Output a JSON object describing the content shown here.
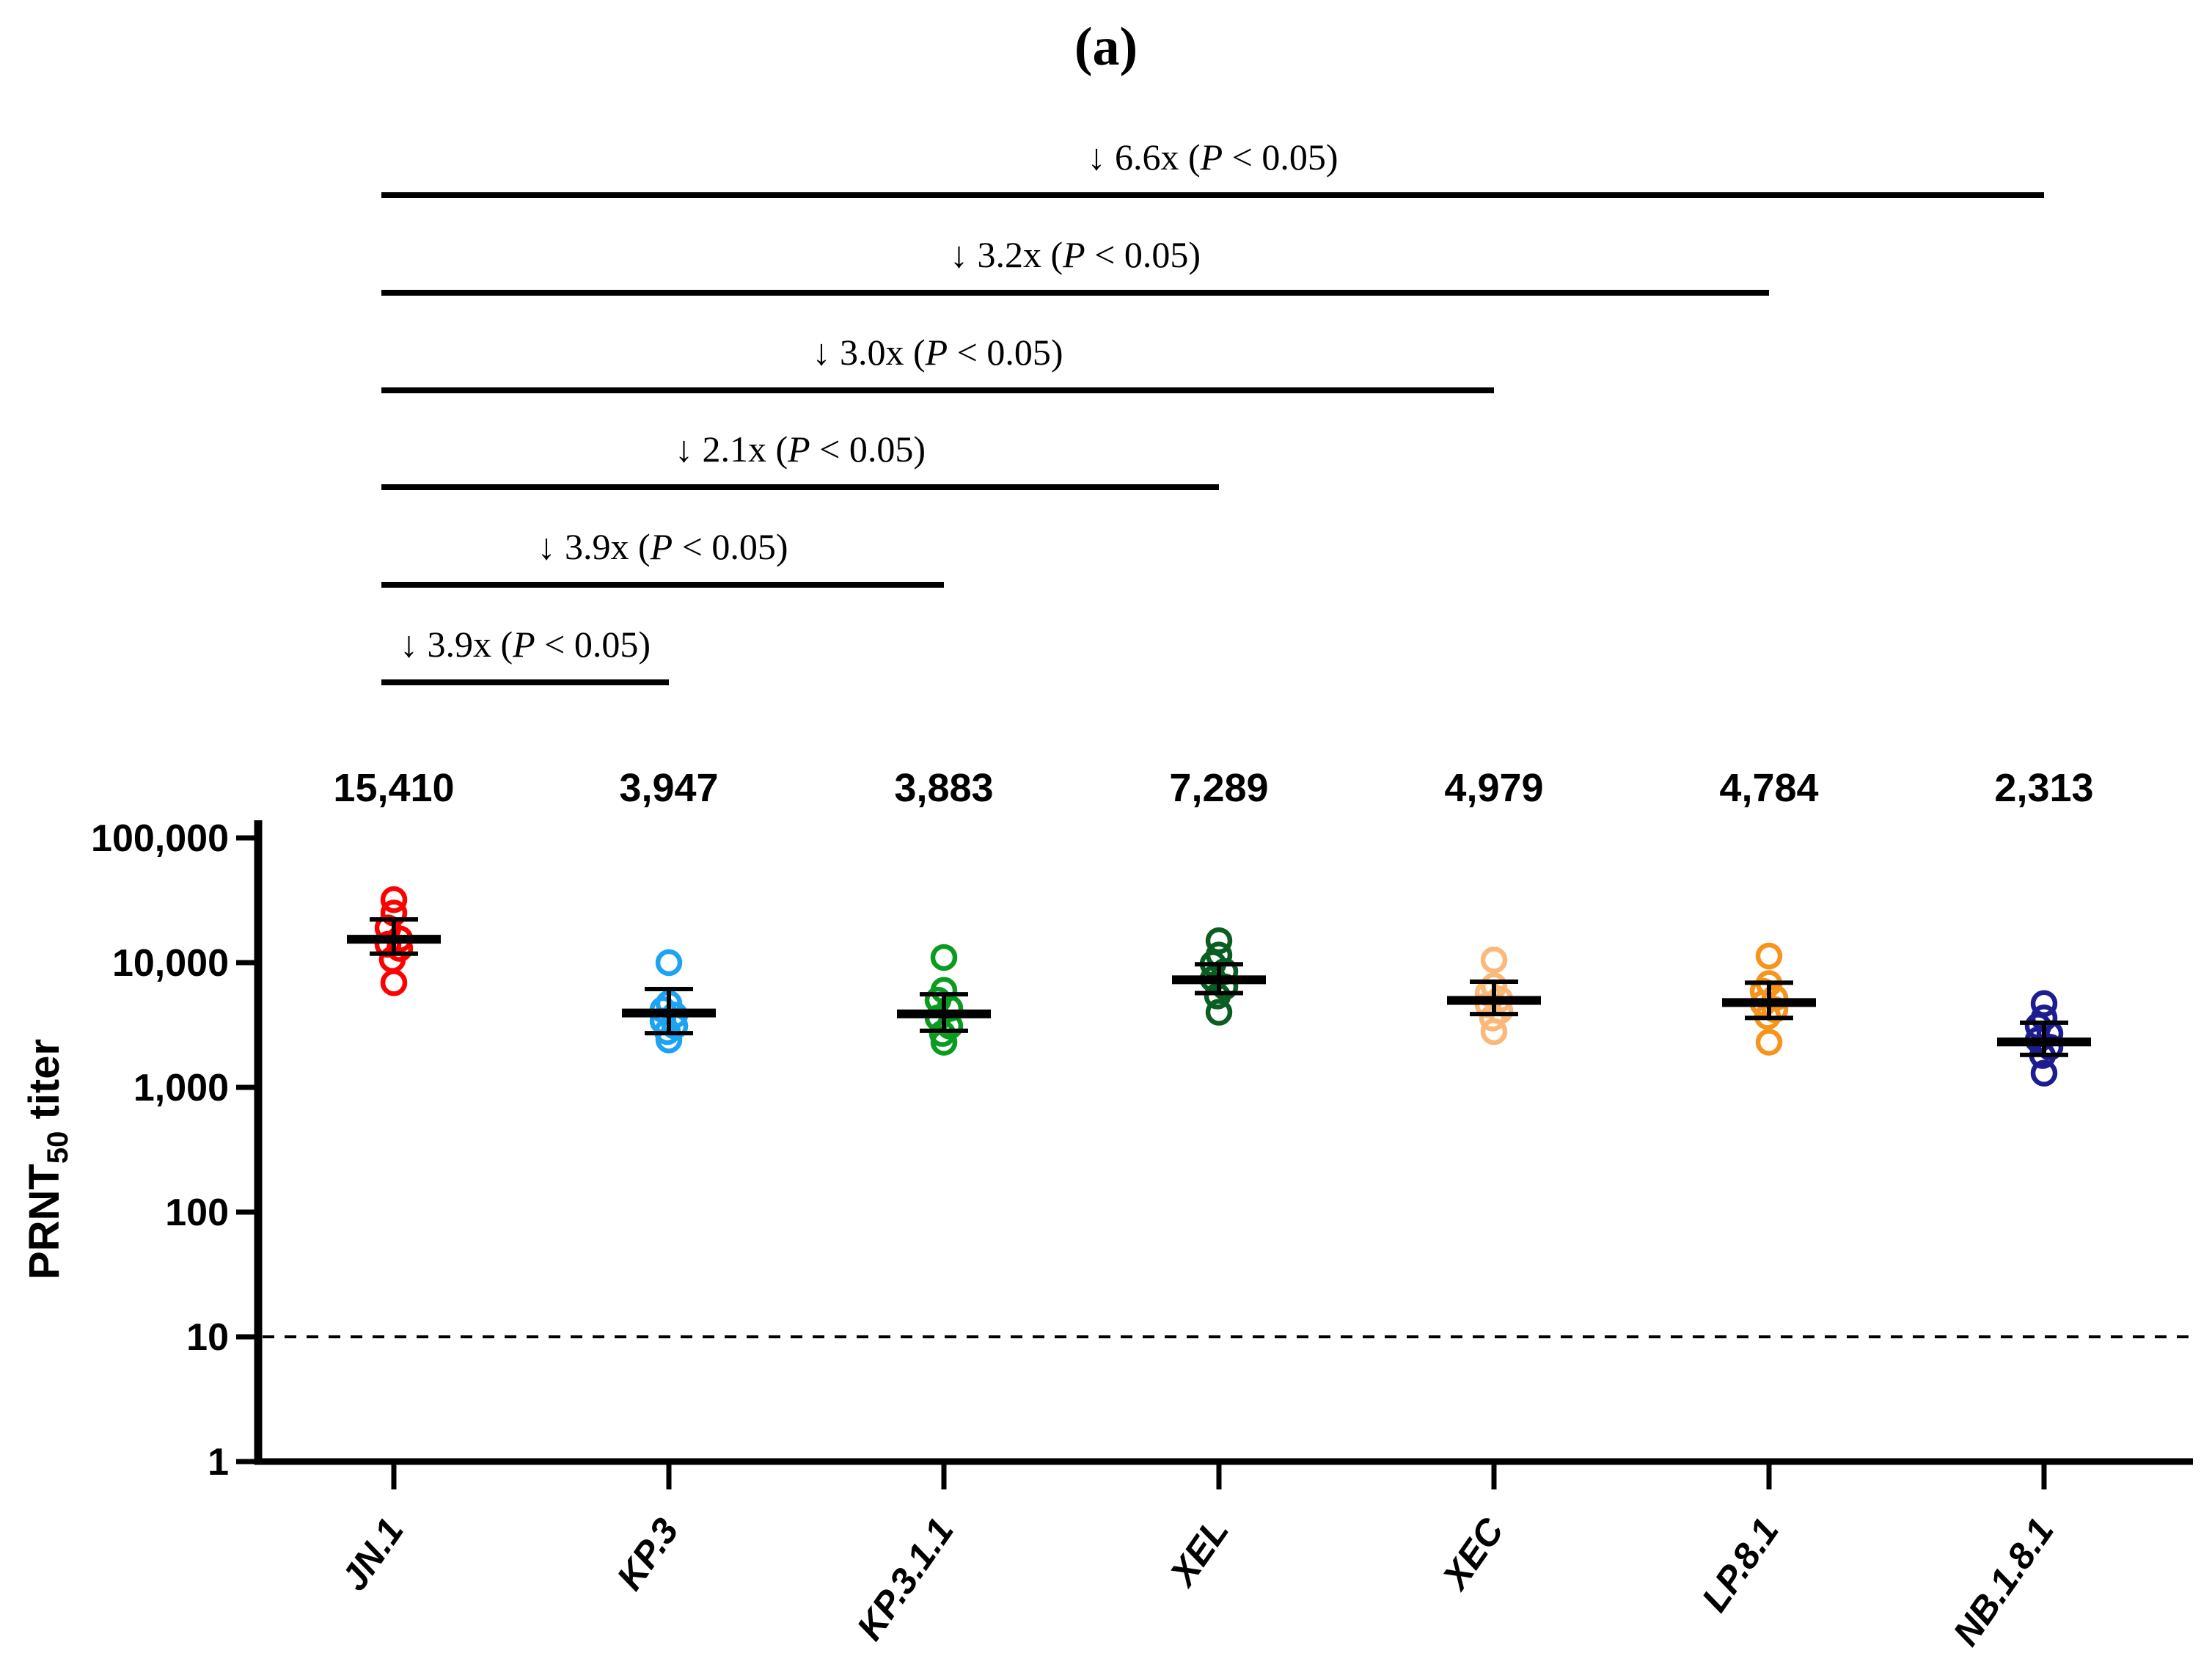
{
  "panel_label": "(a)",
  "chart_data": {
    "type": "scatter",
    "title": "(a)",
    "ylabel": {
      "prefix": "PRNT",
      "sub": "50",
      "suffix": " titer"
    },
    "yaxis": {
      "scale": "log",
      "ylim": [
        1,
        100000
      ],
      "ticks": [
        1,
        10,
        100,
        1000,
        10000,
        100000
      ],
      "tick_labels": [
        "1",
        "10",
        "100",
        "1,000",
        "10,000",
        "100,000"
      ],
      "detection_limit": 10,
      "grid": false
    },
    "categories": [
      "JN.1",
      "KP.3",
      "KP.3.1.1",
      "XEL",
      "XEC",
      "LP.8.1",
      "NB.1.8.1"
    ],
    "groups": [
      {
        "name": "JN.1",
        "color": "#FF0000",
        "gmt": 15410,
        "gmt_label": "15,410",
        "ci_low": 11800,
        "ci_high": 22200,
        "points": [
          32000,
          25000,
          19000,
          15500,
          14000,
          13000,
          10600,
          6900
        ]
      },
      {
        "name": "KP.3",
        "color": "#1CA3F4",
        "gmt": 3947,
        "gmt_label": "3,947",
        "ci_low": 2720,
        "ci_high": 6140,
        "points": [
          10000,
          4700,
          4200,
          3800,
          3400,
          3100,
          2800,
          2400
        ]
      },
      {
        "name": "KP.3.1.1",
        "color": "#0C9B21",
        "gmt": 3883,
        "gmt_label": "3,883",
        "ci_low": 2840,
        "ci_high": 5580,
        "points": [
          11000,
          6000,
          5000,
          4300,
          3600,
          3100,
          2700,
          2300
        ]
      },
      {
        "name": "XEL",
        "color": "#0B5E22",
        "gmt": 7289,
        "gmt_label": "7,289",
        "ci_low": 5700,
        "ci_high": 9700,
        "points": [
          15000,
          11500,
          9800,
          8500,
          7400,
          6400,
          5400,
          4000
        ]
      },
      {
        "name": "XEC",
        "color": "#FBB878",
        "gmt": 4979,
        "gmt_label": "4,979",
        "ci_low": 3870,
        "ci_high": 7030,
        "points": [
          10500,
          6500,
          5700,
          5100,
          4600,
          4100,
          3600,
          2800
        ]
      },
      {
        "name": "LP.8.1",
        "color": "#F7941D",
        "gmt": 4784,
        "gmt_label": "4,784",
        "ci_low": 3600,
        "ci_high": 6900,
        "points": [
          11300,
          6800,
          5900,
          5200,
          4700,
          4200,
          3700,
          2300
        ]
      },
      {
        "name": "NB.1.8.1",
        "color": "#1D1D92",
        "gmt": 2313,
        "gmt_label": "2,313",
        "ci_low": 1820,
        "ci_high": 3300,
        "points": [
          4700,
          3600,
          3100,
          2700,
          2400,
          2100,
          1800,
          1300
        ]
      }
    ],
    "comparisons": [
      {
        "from": "JN.1",
        "to": "NB.1.8.1",
        "arrow": "↓",
        "fold": "6.6x",
        "p": "< 0.05"
      },
      {
        "from": "JN.1",
        "to": "LP.8.1",
        "arrow": "↓",
        "fold": "3.2x",
        "p": "< 0.05"
      },
      {
        "from": "JN.1",
        "to": "XEC",
        "arrow": "↓",
        "fold": "3.0x",
        "p": "< 0.05"
      },
      {
        "from": "JN.1",
        "to": "XEL",
        "arrow": "↓",
        "fold": "2.1x",
        "p": "< 0.05"
      },
      {
        "from": "JN.1",
        "to": "KP.3.1.1",
        "arrow": "↓",
        "fold": "3.9x",
        "p": "< 0.05"
      },
      {
        "from": "JN.1",
        "to": "KP.3",
        "arrow": "↓",
        "fold": "3.9x",
        "p": "< 0.05"
      }
    ]
  }
}
